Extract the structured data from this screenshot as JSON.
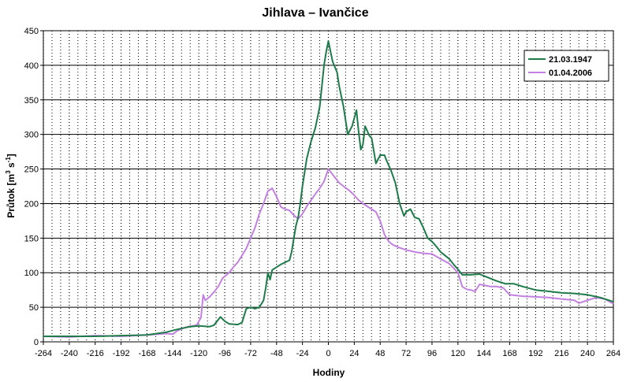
{
  "chart_data": {
    "type": "line",
    "title": "Jihlava – Ivančice",
    "xlabel": "Hodiny",
    "ylabel_main": "Průtok [m",
    "ylabel_sup1": "3",
    "ylabel_mid": " s",
    "ylabel_sup2": "-1",
    "ylabel_end": "]",
    "xlim": [
      -264,
      264
    ],
    "ylim": [
      0,
      450
    ],
    "xticks": [
      -264,
      -240,
      -216,
      -192,
      -168,
      -144,
      -120,
      -96,
      -72,
      -48,
      -24,
      0,
      24,
      48,
      72,
      96,
      120,
      144,
      168,
      192,
      216,
      240,
      264
    ],
    "yticks": [
      0,
      50,
      100,
      150,
      200,
      250,
      300,
      350,
      400,
      450
    ],
    "grid": true,
    "legend_position": "top-right",
    "series": [
      {
        "name": "21.03.1947",
        "color": "#1e7b4a",
        "points": [
          [
            -264,
            8
          ],
          [
            -216,
            8
          ],
          [
            -192,
            9
          ],
          [
            -168,
            10
          ],
          [
            -150,
            14
          ],
          [
            -140,
            18
          ],
          [
            -128,
            22
          ],
          [
            -120,
            23
          ],
          [
            -110,
            22
          ],
          [
            -106,
            24
          ],
          [
            -100,
            36
          ],
          [
            -96,
            30
          ],
          [
            -92,
            26
          ],
          [
            -84,
            25
          ],
          [
            -80,
            28
          ],
          [
            -76,
            48
          ],
          [
            -72,
            50
          ],
          [
            -68,
            48
          ],
          [
            -64,
            50
          ],
          [
            -60,
            60
          ],
          [
            -58,
            78
          ],
          [
            -56,
            100
          ],
          [
            -54,
            90
          ],
          [
            -52,
            104
          ],
          [
            -48,
            108
          ],
          [
            -44,
            112
          ],
          [
            -40,
            115
          ],
          [
            -36,
            118
          ],
          [
            -34,
            130
          ],
          [
            -32,
            150
          ],
          [
            -30,
            168
          ],
          [
            -28,
            180
          ],
          [
            -26,
            200
          ],
          [
            -24,
            225
          ],
          [
            -20,
            265
          ],
          [
            -16,
            290
          ],
          [
            -12,
            310
          ],
          [
            -8,
            340
          ],
          [
            -6,
            370
          ],
          [
            -4,
            400
          ],
          [
            -2,
            420
          ],
          [
            0,
            435
          ],
          [
            2,
            420
          ],
          [
            4,
            405
          ],
          [
            8,
            390
          ],
          [
            10,
            370
          ],
          [
            14,
            340
          ],
          [
            18,
            300
          ],
          [
            22,
            312
          ],
          [
            26,
            335
          ],
          [
            28,
            305
          ],
          [
            30,
            278
          ],
          [
            32,
            285
          ],
          [
            34,
            312
          ],
          [
            38,
            298
          ],
          [
            40,
            295
          ],
          [
            44,
            258
          ],
          [
            48,
            270
          ],
          [
            52,
            270
          ],
          [
            54,
            262
          ],
          [
            58,
            248
          ],
          [
            62,
            230
          ],
          [
            66,
            200
          ],
          [
            70,
            182
          ],
          [
            72,
            188
          ],
          [
            76,
            192
          ],
          [
            80,
            180
          ],
          [
            84,
            178
          ],
          [
            88,
            165
          ],
          [
            92,
            150
          ],
          [
            96,
            145
          ],
          [
            100,
            138
          ],
          [
            104,
            130
          ],
          [
            108,
            125
          ],
          [
            112,
            120
          ],
          [
            116,
            112
          ],
          [
            120,
            105
          ],
          [
            124,
            97
          ],
          [
            132,
            97
          ],
          [
            140,
            98
          ],
          [
            148,
            93
          ],
          [
            156,
            88
          ],
          [
            164,
            84
          ],
          [
            172,
            84
          ],
          [
            180,
            80
          ],
          [
            192,
            75
          ],
          [
            204,
            73
          ],
          [
            216,
            71
          ],
          [
            228,
            70
          ],
          [
            240,
            68
          ],
          [
            252,
            64
          ],
          [
            264,
            58
          ]
        ]
      },
      {
        "name": "01.04.2006",
        "color": "#c281e0",
        "points": [
          [
            -264,
            8
          ],
          [
            -240,
            7
          ],
          [
            -216,
            9
          ],
          [
            -192,
            8
          ],
          [
            -168,
            10
          ],
          [
            -150,
            12
          ],
          [
            -144,
            11
          ],
          [
            -140,
            16
          ],
          [
            -134,
            20
          ],
          [
            -130,
            22
          ],
          [
            -122,
            24
          ],
          [
            -118,
            35
          ],
          [
            -116,
            68
          ],
          [
            -114,
            60
          ],
          [
            -110,
            65
          ],
          [
            -106,
            72
          ],
          [
            -102,
            80
          ],
          [
            -98,
            92
          ],
          [
            -92,
            100
          ],
          [
            -88,
            108
          ],
          [
            -84,
            115
          ],
          [
            -80,
            125
          ],
          [
            -76,
            135
          ],
          [
            -72,
            150
          ],
          [
            -68,
            165
          ],
          [
            -64,
            185
          ],
          [
            -60,
            200
          ],
          [
            -56,
            218
          ],
          [
            -52,
            222
          ],
          [
            -48,
            210
          ],
          [
            -44,
            195
          ],
          [
            -40,
            192
          ],
          [
            -36,
            190
          ],
          [
            -32,
            183
          ],
          [
            -28,
            178
          ],
          [
            -24,
            185
          ],
          [
            -20,
            196
          ],
          [
            -16,
            205
          ],
          [
            -12,
            214
          ],
          [
            -8,
            222
          ],
          [
            -4,
            232
          ],
          [
            0,
            250
          ],
          [
            2,
            246
          ],
          [
            6,
            238
          ],
          [
            10,
            230
          ],
          [
            14,
            225
          ],
          [
            20,
            218
          ],
          [
            24,
            212
          ],
          [
            28,
            205
          ],
          [
            32,
            200
          ],
          [
            36,
            196
          ],
          [
            40,
            192
          ],
          [
            44,
            188
          ],
          [
            48,
            175
          ],
          [
            52,
            155
          ],
          [
            56,
            145
          ],
          [
            60,
            140
          ],
          [
            66,
            136
          ],
          [
            72,
            133
          ],
          [
            80,
            130
          ],
          [
            88,
            128
          ],
          [
            96,
            127
          ],
          [
            104,
            120
          ],
          [
            112,
            113
          ],
          [
            120,
            100
          ],
          [
            124,
            80
          ],
          [
            128,
            76
          ],
          [
            132,
            75
          ],
          [
            136,
            73
          ],
          [
            140,
            83
          ],
          [
            144,
            82
          ],
          [
            150,
            80
          ],
          [
            156,
            80
          ],
          [
            162,
            78
          ],
          [
            168,
            68
          ],
          [
            180,
            66
          ],
          [
            192,
            65
          ],
          [
            204,
            64
          ],
          [
            216,
            62
          ],
          [
            228,
            60
          ],
          [
            232,
            56
          ],
          [
            240,
            60
          ],
          [
            248,
            64
          ],
          [
            256,
            62
          ],
          [
            264,
            55
          ]
        ]
      }
    ]
  }
}
